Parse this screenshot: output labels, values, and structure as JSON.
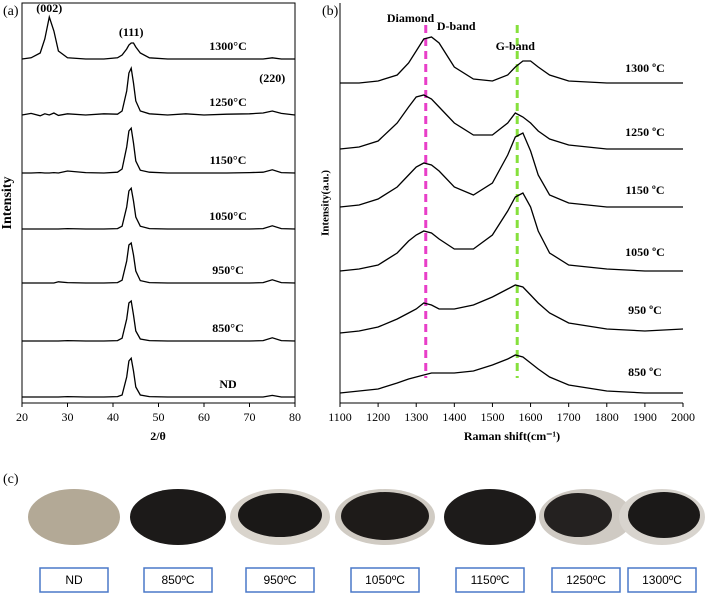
{
  "chart_data": [
    {
      "type": "line",
      "panel_label": "(a)",
      "x_label": "2/θ",
      "y_label": "Intensity",
      "xlim": [
        20,
        80
      ],
      "xticks": [
        20,
        30,
        40,
        50,
        60,
        70,
        80
      ],
      "ylim": [
        0,
        100
      ],
      "x": [
        20,
        22,
        24,
        25,
        26,
        27,
        28,
        30,
        34,
        38,
        41,
        42,
        43,
        43.5,
        44,
        44.5,
        45,
        46,
        48,
        52,
        56,
        60,
        65,
        70,
        73,
        75,
        77,
        80
      ],
      "series": [
        {
          "name": "1300°C",
          "color": "#000000",
          "values": [
            86,
            86.3,
            87.5,
            91,
            96.5,
            93,
            88,
            86.3,
            86,
            86,
            86.3,
            87,
            88.5,
            89.5,
            90,
            90,
            89,
            87.5,
            86.3,
            86,
            86,
            86,
            86,
            86,
            86,
            86.3,
            86,
            86
          ]
        },
        {
          "name": "1250°C",
          "color": "#000000",
          "values": [
            72,
            72.4,
            71.8,
            72.3,
            72,
            72.5,
            71.9,
            72.3,
            72,
            72.3,
            72.2,
            73,
            78,
            82.5,
            83.7,
            80,
            75.5,
            73,
            72.3,
            72,
            72.3,
            72,
            72.2,
            72.3,
            72.5,
            73,
            72.4,
            72
          ]
        },
        {
          "name": "1150°C",
          "color": "#000000",
          "values": [
            57.5,
            57.5,
            57.6,
            57.5,
            57.5,
            57.6,
            57.5,
            58,
            57.6,
            57.5,
            57.7,
            58.5,
            64,
            68,
            68.7,
            65,
            60.5,
            58.2,
            57.7,
            57.5,
            57.5,
            57.5,
            57.5,
            57.6,
            57.7,
            58.3,
            57.6,
            57.5
          ]
        },
        {
          "name": "1050°C",
          "color": "#000000",
          "values": [
            43.5,
            43.5,
            43.5,
            43.5,
            43.5,
            43.5,
            43.5,
            43.6,
            43.5,
            43.5,
            43.6,
            44.2,
            49,
            53,
            53.7,
            50.5,
            46.5,
            44.2,
            43.6,
            43.5,
            43.5,
            43.5,
            43.5,
            43.5,
            43.6,
            44.3,
            43.6,
            43.5
          ]
        },
        {
          "name": "950°C",
          "color": "#000000",
          "values": [
            30,
            30,
            30,
            30,
            30,
            30,
            30.3,
            30.1,
            30,
            30,
            30.1,
            30.7,
            35.5,
            39.5,
            40,
            37,
            33,
            30.6,
            30.1,
            30,
            30,
            30,
            30,
            30,
            30.1,
            30.8,
            30.1,
            30
          ]
        },
        {
          "name": "850°C",
          "color": "#000000",
          "values": [
            15.5,
            15.5,
            15.5,
            15.5,
            15.5,
            15.5,
            15.5,
            15.6,
            15.5,
            15.5,
            15.6,
            16.2,
            21,
            25,
            25.5,
            22,
            18,
            16,
            15.6,
            15.5,
            15.5,
            15.5,
            15.5,
            15.5,
            15.6,
            16.3,
            15.6,
            15.5
          ]
        },
        {
          "name": "ND",
          "color": "#000000",
          "values": [
            1.5,
            1.5,
            1.5,
            1.5,
            1.5,
            1.5,
            1.5,
            1.6,
            1.5,
            1.5,
            1.6,
            2,
            6.5,
            10.5,
            11.2,
            8,
            4,
            2,
            1.6,
            1.5,
            1.5,
            1.5,
            1.5,
            1.5,
            1.5,
            1.9,
            1.5,
            1.5
          ]
        }
      ],
      "annotations": [
        {
          "text": "(002)",
          "x": 26,
          "y": 98.5
        },
        {
          "text": "(111)",
          "x": 44,
          "y": 92.5
        },
        {
          "text": "(220)",
          "x": 75,
          "y": 81
        }
      ]
    },
    {
      "type": "line",
      "panel_label": "(b)",
      "x_label": "Raman shift(cm⁻¹)",
      "y_label": "Intensity(a.u.)",
      "xlim": [
        1100,
        2000
      ],
      "xticks": [
        1100,
        1200,
        1300,
        1400,
        1500,
        1600,
        1700,
        1800,
        1900,
        2000
      ],
      "ylim": [
        0,
        100
      ],
      "x": [
        1100,
        1150,
        1200,
        1250,
        1280,
        1300,
        1320,
        1340,
        1360,
        1400,
        1450,
        1500,
        1540,
        1560,
        1580,
        1600,
        1620,
        1650,
        1700,
        1800,
        1900,
        2000
      ],
      "series": [
        {
          "name": "1300 ºC",
          "color": "#000000",
          "values": [
            80,
            80,
            80.5,
            82,
            85,
            88,
            91,
            91.5,
            90,
            84,
            81,
            80.5,
            82,
            84,
            85.5,
            85.5,
            84,
            82,
            80.5,
            80,
            80,
            80
          ]
        },
        {
          "name": "1250 ºC",
          "color": "#000000",
          "values": [
            63.5,
            64,
            65.5,
            70,
            74,
            76.5,
            77,
            76,
            74,
            70,
            67,
            67,
            70,
            72.5,
            71.5,
            70,
            68,
            66,
            64.5,
            63.5,
            63.5,
            63.5
          ]
        },
        {
          "name": "1150 ºC",
          "color": "#000000",
          "values": [
            49,
            49.5,
            51,
            54,
            57,
            59,
            60,
            59.5,
            58,
            54,
            52,
            55,
            62,
            66.5,
            67.5,
            63,
            57,
            52,
            50,
            49,
            49,
            49
          ]
        },
        {
          "name": "1050 ºC",
          "color": "#000000",
          "values": [
            33,
            33.5,
            34.5,
            37.5,
            40.5,
            42,
            43,
            42.5,
            41,
            38.5,
            38.5,
            42,
            48,
            51.5,
            52.5,
            49,
            43,
            37.5,
            34.5,
            33.5,
            33,
            33
          ]
        },
        {
          "name": "950 ºC",
          "color": "#000000",
          "values": [
            17.5,
            18,
            19,
            21,
            22.5,
            23.5,
            25,
            24.5,
            23.5,
            23.5,
            24.5,
            26.5,
            28.5,
            29.5,
            29,
            27,
            25,
            22.5,
            20,
            18.5,
            18,
            18.5
          ]
        },
        {
          "name": "850 ºC",
          "color": "#000000",
          "values": [
            2.5,
            3,
            3.5,
            5,
            6,
            6.5,
            7,
            7.5,
            7.5,
            7.5,
            8,
            9.5,
            11,
            12,
            11.5,
            10,
            8.5,
            6.5,
            4.5,
            3,
            2.5,
            2.5
          ]
        }
      ],
      "reference_lines": [
        {
          "x": 1325,
          "color": "#e83ec8"
        },
        {
          "x": 1565,
          "color": "#86e03c"
        }
      ],
      "annotations": [
        {
          "text": "Diamond",
          "x": 1285,
          "y": 96
        },
        {
          "text": "D-band",
          "x": 1405,
          "y": 94
        },
        {
          "text": "G-band",
          "x": 1560,
          "y": 89
        }
      ]
    }
  ],
  "panel_c": {
    "panel_label": "(c)",
    "samples": [
      "ND",
      "850ºC",
      "950ºC",
      "1050ºC",
      "1150ºC",
      "1250ºC",
      "1300ºC"
    ]
  }
}
